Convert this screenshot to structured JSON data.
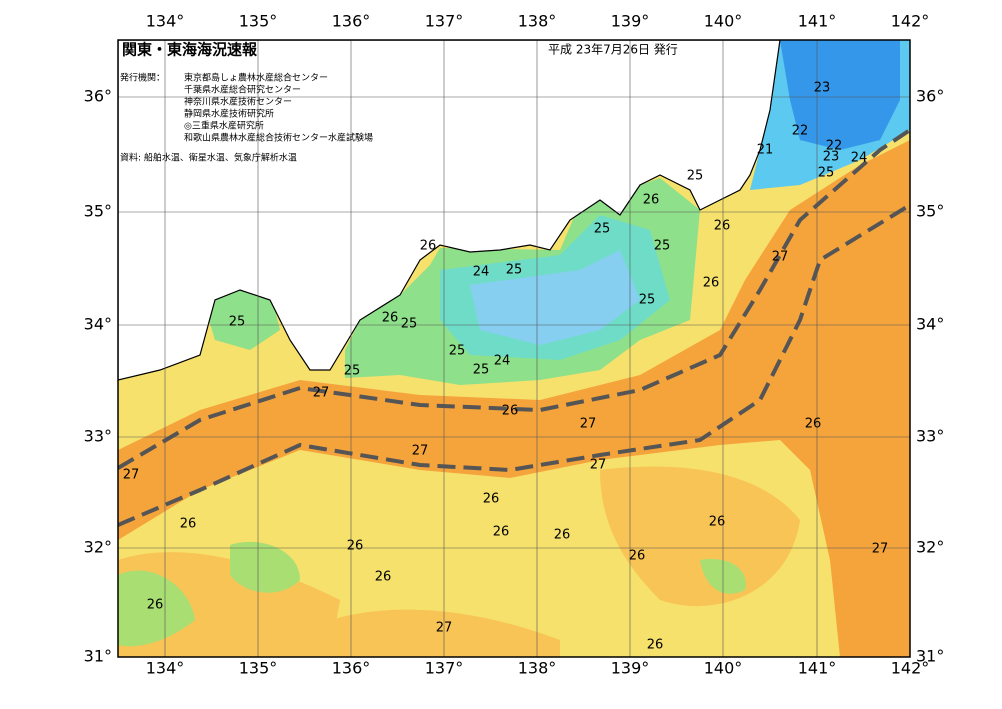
{
  "header": {
    "title": "関東・東海海況速報",
    "issued": "平成 23年7月26日 発行"
  },
  "credits": {
    "heading": "発行機関：",
    "institutions": [
      "東京都島しょ農林水産総合センター",
      "千葉県水産総合研究センター",
      "神奈川県水産技術センター",
      "静岡県水産技術研究所",
      "◎三重県水産研究所",
      "和歌山県農林水産総合技術センター水産試験場"
    ],
    "sources": "資料: 船舶水温、衛星水温、気象庁解析水温"
  },
  "map": {
    "lon_labels": [
      "134°",
      "135°",
      "136°",
      "137°",
      "138°",
      "139°",
      "140°",
      "141°",
      "142°"
    ],
    "lat_labels": [
      "36°",
      "35°",
      "34°",
      "33°",
      "32°",
      "31°"
    ],
    "contour_labels": [
      "23",
      "22",
      "21",
      "22",
      "23",
      "24",
      "25",
      "25",
      "26",
      "25",
      "26",
      "26",
      "24",
      "25",
      "25",
      "27",
      "26",
      "25",
      "25",
      "26",
      "25",
      "25",
      "24",
      "25",
      "25",
      "27",
      "26",
      "27",
      "26",
      "27",
      "27",
      "27",
      "26",
      "26",
      "26",
      "26",
      "26",
      "26",
      "27",
      "26",
      "26",
      "26",
      "27",
      "26"
    ]
  }
}
